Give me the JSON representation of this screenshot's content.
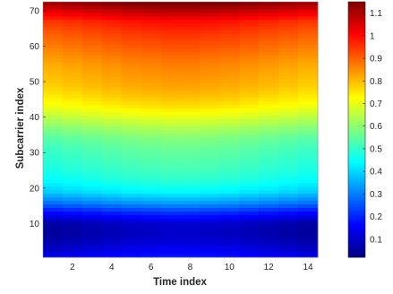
{
  "chart_data": {
    "type": "heatmap",
    "xlabel": "Time index",
    "ylabel": "Subcarrier index",
    "x_range": [
      1,
      14
    ],
    "y_range": [
      1,
      72
    ],
    "xticks": [
      2,
      4,
      6,
      8,
      10,
      12,
      14
    ],
    "yticks": [
      10,
      20,
      30,
      40,
      50,
      60,
      70
    ],
    "colormap": "jet",
    "colorbar": {
      "placement": "right",
      "range": [
        0.02,
        1.15
      ],
      "ticks": [
        0.1,
        0.2,
        0.3,
        0.4,
        0.5,
        0.6,
        0.7,
        0.8,
        0.9,
        1,
        1.1
      ]
    },
    "profile_subcarriers": [
      1,
      4,
      7,
      10,
      13,
      16,
      19,
      22,
      25,
      28,
      31,
      34,
      37,
      40,
      43,
      46,
      49,
      52,
      55,
      58,
      61,
      64,
      67,
      70,
      72
    ],
    "profile_values": [
      0.14,
      0.09,
      0.06,
      0.07,
      0.17,
      0.3,
      0.4,
      0.45,
      0.48,
      0.5,
      0.52,
      0.55,
      0.6,
      0.66,
      0.72,
      0.76,
      0.79,
      0.81,
      0.83,
      0.86,
      0.89,
      0.92,
      0.96,
      1.05,
      1.12
    ],
    "time_offsets": [
      -0.01,
      0.0,
      0.01,
      0.02,
      0.03,
      0.035,
      0.04,
      0.04,
      0.035,
      0.03,
      0.02,
      0.01,
      0.0,
      -0.01
    ]
  }
}
